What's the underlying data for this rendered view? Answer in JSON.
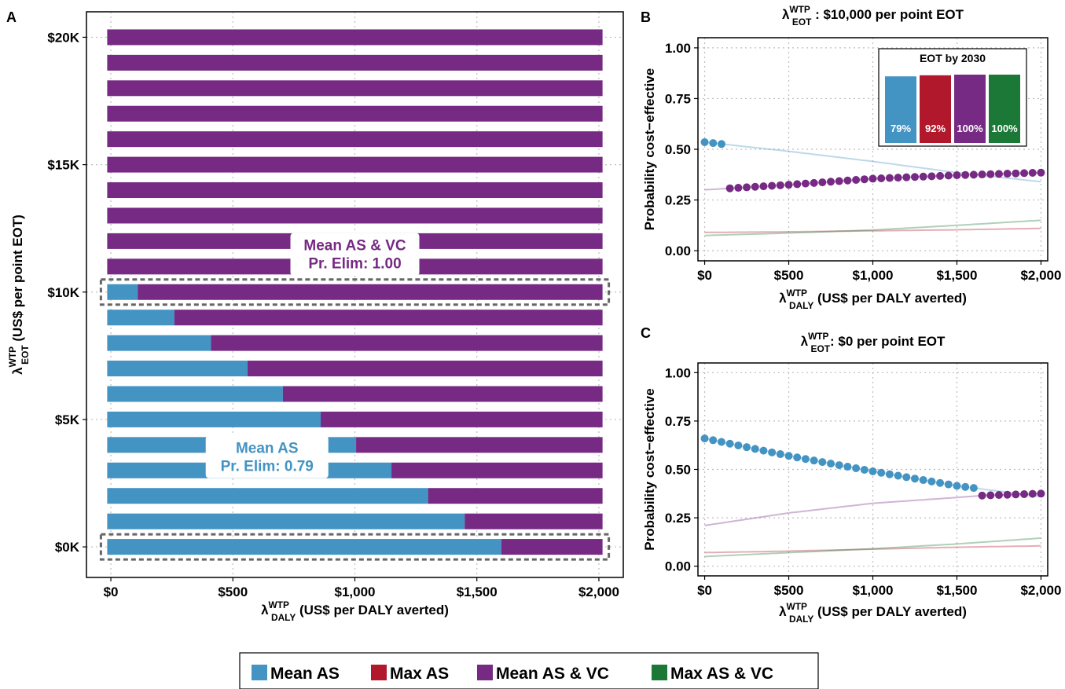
{
  "colors": {
    "mean_as": "#4393c3",
    "max_as": "#b2182b",
    "mean_as_vc": "#762a83",
    "max_as_vc": "#1b7837",
    "grid": "#bdbdbd"
  },
  "legend": {
    "items": [
      {
        "label": "Mean AS",
        "color": "#4393c3"
      },
      {
        "label": "Max AS",
        "color": "#b2182b"
      },
      {
        "label": "Mean AS & VC",
        "color": "#762a83"
      },
      {
        "label": "Max AS & VC",
        "color": "#1b7837"
      }
    ]
  },
  "chart_data": [
    {
      "panel": "A",
      "type": "bar",
      "orientation": "horizontal-stacked",
      "xlabel_main": "λ",
      "xlabel_sub": "DALY",
      "xlabel_sup": "WTP",
      "xlabel_rest": " (US$ per DALY averted)",
      "ylabel_main": "λ",
      "ylabel_sub": "EOT",
      "ylabel_sup": "WTP",
      "ylabel_rest": " (US$ per point EOT)",
      "xlim": [
        -100,
        2100
      ],
      "xticks": [
        0,
        500,
        1000,
        1500,
        2000
      ],
      "xtick_labels": [
        "$0",
        "$500",
        "$1,000",
        "$1,500",
        "$2,000"
      ],
      "ylim": [
        -1200,
        21000
      ],
      "yticks": [
        0,
        5000,
        10000,
        15000,
        20000
      ],
      "ytick_labels": [
        "$0K",
        "$5K",
        "$10K",
        "$15K",
        "$20K"
      ],
      "bar_x_range": [
        -15,
        2015
      ],
      "categories": [
        0,
        1000,
        2000,
        3000,
        4000,
        5000,
        6000,
        7000,
        8000,
        9000,
        10000,
        11000,
        12000,
        13000,
        14000,
        15000,
        16000,
        17000,
        18000,
        19000,
        20000
      ],
      "mean_as_share_end": [
        1600,
        1450,
        1300,
        1150,
        1005,
        860,
        705,
        560,
        410,
        260,
        110,
        -15,
        -15,
        -15,
        -15,
        -15,
        -15,
        -15,
        -15,
        -15,
        -15
      ],
      "highlight_rows": [
        0,
        10000
      ],
      "annotations": [
        {
          "line1": "Mean AS & VC",
          "line2": "Pr. Elim: 1.00",
          "color": "#762a83",
          "x": 1000,
          "y": 11450
        },
        {
          "line1": "Mean AS",
          "line2": "Pr. Elim: 0.79",
          "color": "#4393c3",
          "x": 640,
          "y": 3500
        }
      ]
    },
    {
      "panel": "B",
      "type": "line",
      "title_main": "λ",
      "title_sub": "EOT",
      "title_sup": "WTP",
      "title_rest": " : $10,000  per  point  EOT",
      "xlabel_main": "λ",
      "xlabel_sub": "DALY",
      "xlabel_sup": "WTP",
      "xlabel_rest": " (US$ per DALY averted)",
      "ylabel": "Probability cost−effective",
      "xlim": [
        -40,
        2040
      ],
      "ylim": [
        -0.05,
        1.05
      ],
      "xticks": [
        0,
        500,
        1000,
        1500,
        2000
      ],
      "xtick_labels": [
        "$0",
        "$500",
        "$1,000",
        "$1,500",
        "$2,000"
      ],
      "yticks": [
        0,
        0.25,
        0.5,
        0.75,
        1.0
      ],
      "ytick_labels": [
        "0.00",
        "0.25",
        "0.50",
        "0.75",
        "1.00"
      ],
      "series": [
        {
          "name": "Mean AS",
          "x": [
            0,
            500,
            1000,
            1500,
            2000
          ],
          "y": [
            0.535,
            0.49,
            0.44,
            0.385,
            0.34
          ],
          "points_x_range": [
            0,
            100
          ]
        },
        {
          "name": "Max AS",
          "x": [
            0,
            500,
            1000,
            1500,
            2000
          ],
          "y": [
            0.09,
            0.093,
            0.098,
            0.103,
            0.11
          ],
          "points_x_range": null
        },
        {
          "name": "Mean AS & VC",
          "x": [
            0,
            500,
            1000,
            1500,
            2000
          ],
          "y": [
            0.3,
            0.325,
            0.355,
            0.372,
            0.385
          ],
          "points_x_range": [
            150,
            2000
          ]
        },
        {
          "name": "Max AS & VC",
          "x": [
            0,
            500,
            1000,
            1500,
            2000
          ],
          "y": [
            0.075,
            0.087,
            0.102,
            0.125,
            0.15
          ],
          "points_x_range": null
        }
      ],
      "inset": {
        "title": "EOT by 2030",
        "bars": [
          {
            "label": "79%",
            "value": 0.79,
            "color": "#4393c3"
          },
          {
            "label": "92%",
            "value": 0.92,
            "color": "#b2182b"
          },
          {
            "label": "100%",
            "value": 1.0,
            "color": "#762a83"
          },
          {
            "label": "100%",
            "value": 1.0,
            "color": "#1b7837"
          }
        ]
      }
    },
    {
      "panel": "C",
      "type": "line",
      "title_main": "λ",
      "title_sub": "EOT",
      "title_sup": "WTP",
      "title_rest": ": $0 per point EOT",
      "xlabel_main": "λ",
      "xlabel_sub": "DALY",
      "xlabel_sup": "WTP",
      "xlabel_rest": " (US$ per DALY averted)",
      "ylabel": "Probability cost−effective",
      "xlim": [
        -40,
        2040
      ],
      "ylim": [
        -0.05,
        1.05
      ],
      "xticks": [
        0,
        500,
        1000,
        1500,
        2000
      ],
      "xtick_labels": [
        "$0",
        "$500",
        "$1,000",
        "$1,500",
        "$2,000"
      ],
      "yticks": [
        0,
        0.25,
        0.5,
        0.75,
        1.0
      ],
      "ytick_labels": [
        "0.00",
        "0.25",
        "0.50",
        "0.75",
        "1.00"
      ],
      "series": [
        {
          "name": "Mean AS",
          "x": [
            0,
            500,
            1000,
            1500,
            2000
          ],
          "y": [
            0.66,
            0.57,
            0.49,
            0.415,
            0.36
          ],
          "points_x_range": [
            0,
            1600
          ]
        },
        {
          "name": "Max AS",
          "x": [
            0,
            500,
            1000,
            1500,
            2000
          ],
          "y": [
            0.07,
            0.078,
            0.088,
            0.098,
            0.105
          ],
          "points_x_range": null
        },
        {
          "name": "Mean AS & VC",
          "x": [
            0,
            500,
            1000,
            1500,
            1650,
            2000
          ],
          "y": [
            0.21,
            0.275,
            0.325,
            0.355,
            0.365,
            0.375
          ],
          "points_x_range": [
            1650,
            2000
          ]
        },
        {
          "name": "Max AS & VC",
          "x": [
            0,
            500,
            1000,
            1500,
            2000
          ],
          "y": [
            0.05,
            0.07,
            0.09,
            0.115,
            0.145
          ],
          "points_x_range": null
        }
      ]
    }
  ],
  "panel_letters": [
    "A",
    "B",
    "C"
  ]
}
